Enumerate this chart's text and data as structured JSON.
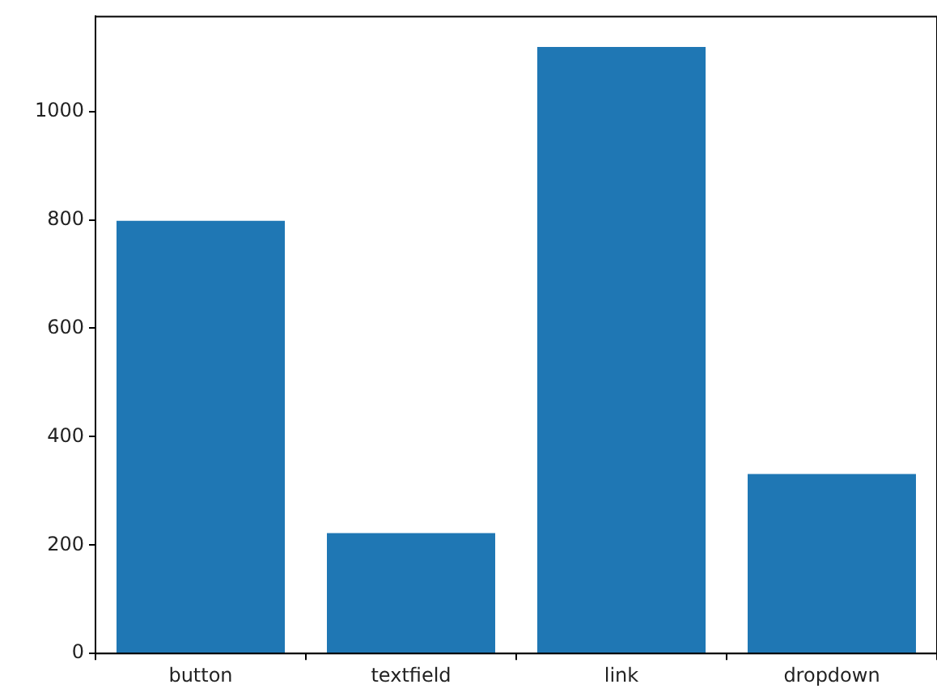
{
  "chart_data": {
    "type": "bar",
    "categories": [
      "button",
      "textfield",
      "link",
      "dropdown"
    ],
    "values": [
      798,
      222,
      1119,
      331
    ],
    "color": "#1f77b4",
    "ylim": [
      0,
      1175
    ],
    "yticks": [
      0,
      200,
      400,
      600,
      800,
      1000
    ],
    "grid": false,
    "legend": false
  }
}
